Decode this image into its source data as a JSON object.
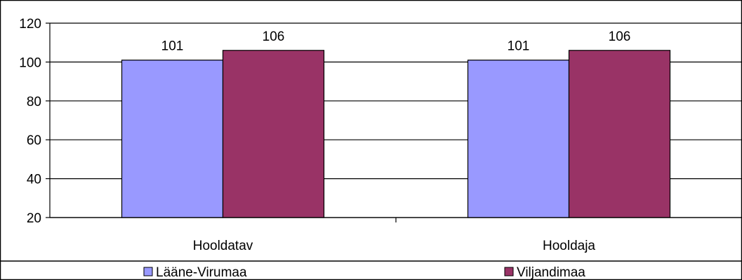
{
  "chart_data": {
    "type": "bar",
    "categories": [
      "Hooldatav",
      "Hooldaja"
    ],
    "series": [
      {
        "name": "Lääne-Virumaa",
        "values": [
          101,
          101
        ],
        "color": "#9999ff"
      },
      {
        "name": "Viljandimaa",
        "values": [
          106,
          106
        ],
        "color": "#993366"
      }
    ],
    "ylim": [
      20,
      120
    ],
    "yticks": [
      20,
      40,
      60,
      80,
      100,
      120
    ],
    "data_labels": true,
    "grid": true,
    "legend_position": "bottom"
  }
}
